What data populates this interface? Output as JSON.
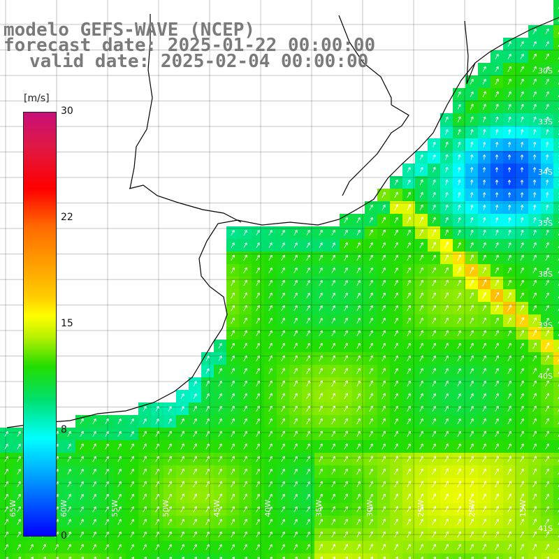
{
  "header": {
    "model": "modelo GEFS-WAVE (NCEP)",
    "forecast": "forecast date: 2025-01-22 00:00:00",
    "valid": "valid date: 2025-02-04 00:00:00"
  },
  "legend": {
    "unit": "[m/s]",
    "ticks": [
      {
        "label": "30",
        "value": 30
      },
      {
        "label": "22",
        "value": 22
      },
      {
        "label": "15",
        "value": 15
      },
      {
        "label": "8",
        "value": 8
      },
      {
        "label": "0",
        "value": 0
      }
    ]
  },
  "lon_labels": [
    "65W",
    "60W",
    "55W",
    "50W",
    "45W",
    "40W",
    "35W",
    "30W",
    "25W",
    "20W",
    "15W"
  ],
  "lat_labels": [
    "30S",
    "33S",
    "34S",
    "35S",
    "38S",
    "39S",
    "40S",
    "41S"
  ],
  "colors": {
    "land": "#ffffff",
    "coastline": "#000000",
    "grid": "#000000",
    "arrow": "#ffffff",
    "title": "#7a7a7a"
  },
  "chart_data": {
    "type": "heatmap",
    "variable": "wind speed",
    "unit": "[m/s]",
    "color_range": [
      0,
      30
    ],
    "vectors": "white wind direction arrows on each grid cell",
    "dominant_value_range": [
      10,
      14
    ],
    "regions": [
      {
        "area": "open ocean south",
        "approx_speed": 12
      },
      {
        "area": "north-east offshore",
        "approx_speed": 4
      },
      {
        "area": "front band north-east",
        "approx_speed": 17
      },
      {
        "area": "coastal south-west",
        "approx_speed": 9
      }
    ]
  }
}
